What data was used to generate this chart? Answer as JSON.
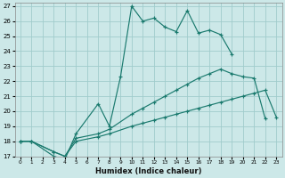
{
  "xlabel": "Humidex (Indice chaleur)",
  "background_color": "#cce8e8",
  "grid_color": "#a0cccc",
  "line_color": "#1a7a6e",
  "xlim": [
    -0.5,
    23.5
  ],
  "ylim": [
    17,
    27.2
  ],
  "yticks": [
    17,
    18,
    19,
    20,
    21,
    22,
    23,
    24,
    25,
    26,
    27
  ],
  "xticks": [
    0,
    1,
    2,
    3,
    4,
    5,
    6,
    7,
    8,
    9,
    10,
    11,
    12,
    13,
    14,
    15,
    16,
    17,
    18,
    19,
    20,
    21,
    22,
    23
  ],
  "series": [
    {
      "x": [
        0,
        1,
        3,
        4,
        5,
        7,
        8,
        9,
        10,
        11,
        12,
        13,
        14,
        15,
        16,
        17,
        18,
        19
      ],
      "y": [
        18,
        18,
        17.0,
        16.8,
        18.5,
        20.5,
        19.0,
        22.3,
        27.0,
        26.0,
        26.2,
        25.6,
        25.3,
        26.7,
        25.2,
        25.4,
        25.1,
        23.8
      ]
    },
    {
      "x": [
        0,
        1,
        3,
        4,
        5,
        7,
        8,
        10,
        11,
        12,
        13,
        14,
        15,
        16,
        17,
        18,
        19,
        20,
        21,
        22
      ],
      "y": [
        18,
        18,
        17.3,
        17.0,
        18.2,
        18.5,
        18.8,
        19.8,
        20.2,
        20.6,
        21.0,
        21.4,
        21.8,
        22.2,
        22.5,
        22.8,
        22.5,
        22.3,
        22.2,
        19.5
      ]
    },
    {
      "x": [
        0,
        1,
        3,
        4,
        5,
        7,
        8,
        10,
        11,
        12,
        13,
        14,
        15,
        16,
        17,
        18,
        19,
        20,
        21,
        22,
        23
      ],
      "y": [
        18,
        18,
        17.3,
        17.0,
        18.0,
        18.3,
        18.5,
        19.0,
        19.2,
        19.4,
        19.6,
        19.8,
        20.0,
        20.2,
        20.4,
        20.6,
        20.8,
        21.0,
        21.2,
        21.4,
        19.6
      ]
    }
  ]
}
